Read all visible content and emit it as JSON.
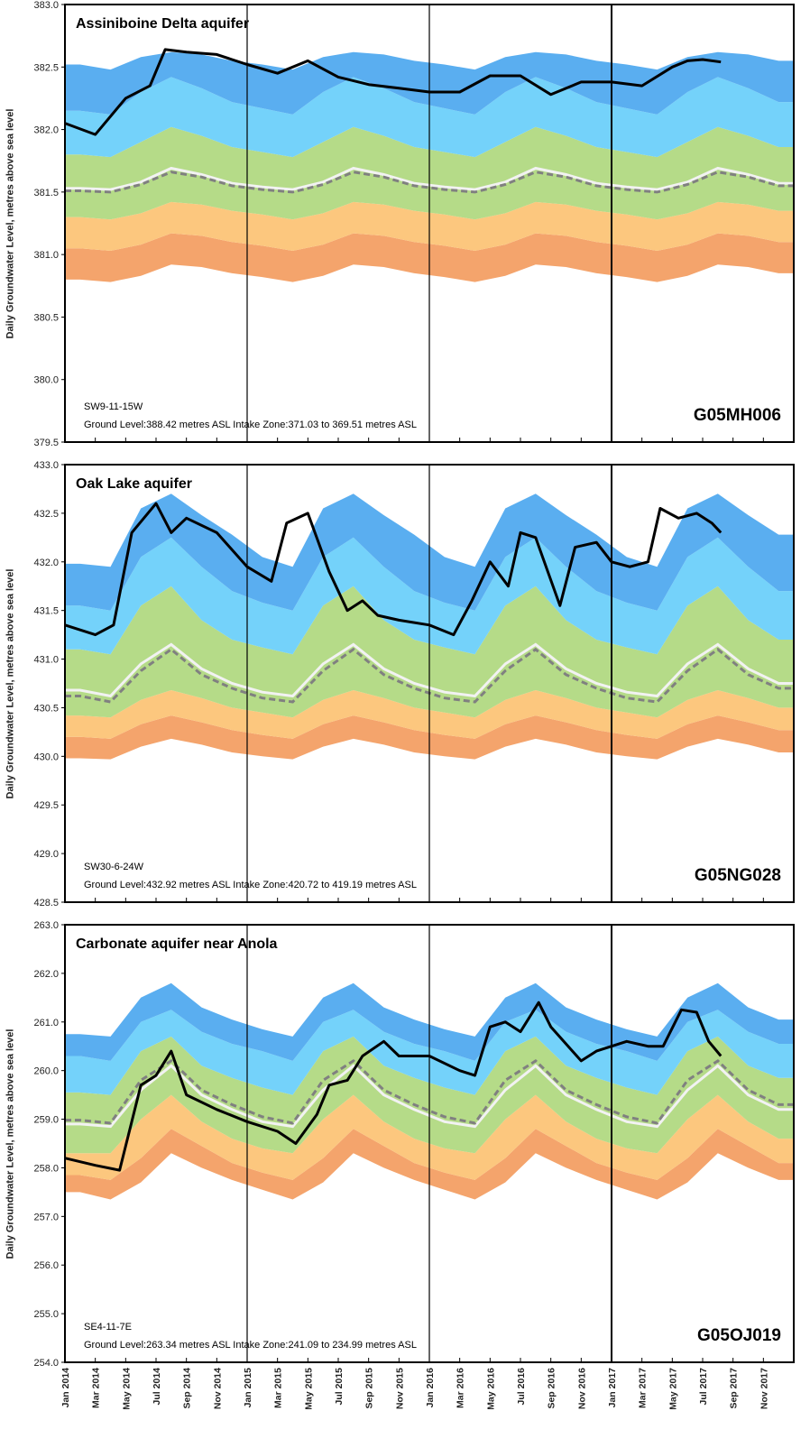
{
  "shared": {
    "ylabel": "Daily Groundwater Level, metres above sea level",
    "x_tick_labels": [
      "Jan 2014",
      "Mar 2014",
      "May 2014",
      "Jul 2014",
      "Sep 2014",
      "Nov 2014",
      "Jan 2015",
      "Mar 2015",
      "May 2015",
      "Jul 2015",
      "Sep 2015",
      "Nov 2015",
      "Jan 2016",
      "Mar 2016",
      "May 2016",
      "Jul 2016",
      "Sep 2016",
      "Nov 2016",
      "Jan 2017",
      "Mar 2017",
      "May 2017",
      "Jul 2017",
      "Sep 2017",
      "Nov 2017"
    ],
    "year_markers": [
      "Jan 2015",
      "Jan 2016",
      "Jan 2017"
    ],
    "colors": {
      "band_top": "#5aaef0",
      "band_upper": "#74d2fa",
      "band_mid": "#b5db88",
      "band_lower": "#fcc77e",
      "band_bottom": "#f4a46c",
      "median_line": "#f2f2f2",
      "mean_dash": "#808080",
      "level_line": "#000000",
      "marker_line": "#000000"
    }
  },
  "chart_data": [
    {
      "type": "area",
      "title": "Assiniboine Delta aquifer",
      "station": "G05MH006",
      "location": "SW9-11-15W",
      "details": "Ground Level:388.42 metres ASL  Intake Zone:371.03 to 369.51 metres ASL",
      "ylabel": "Daily Groundwater Level, metres above sea level",
      "ylim": [
        379.5,
        383.0
      ],
      "yticks": [
        "383.0",
        "382.5",
        "382.0",
        "381.5",
        "381.0",
        "380.5",
        "380.0",
        "379.5"
      ],
      "x": [
        "Jan 2014",
        "Mar 2014",
        "May 2014",
        "Jul 2014",
        "Sep 2014",
        "Nov 2014",
        "Jan 2015",
        "Mar 2015",
        "May 2015",
        "Jul 2015",
        "Sep 2015",
        "Nov 2015",
        "Jan 2016",
        "Mar 2016",
        "May 2016",
        "Jul 2016",
        "Sep 2016",
        "Nov 2016",
        "Jan 2017",
        "Mar 2017",
        "May 2017",
        "Jul 2017",
        "Sep 2017",
        "Nov 2017"
      ],
      "bands": {
        "min": [
          380.8,
          380.78,
          380.83,
          380.92,
          380.9,
          380.85,
          380.82,
          380.78,
          380.83,
          380.92,
          380.9,
          380.85,
          380.82,
          380.78,
          380.83,
          380.92,
          380.9,
          380.85,
          380.82,
          380.78,
          380.83,
          380.92,
          380.9,
          380.85
        ],
        "p10": [
          381.05,
          381.03,
          381.08,
          381.17,
          381.15,
          381.1,
          381.07,
          381.03,
          381.08,
          381.17,
          381.15,
          381.1,
          381.07,
          381.03,
          381.08,
          381.17,
          381.15,
          381.1,
          381.07,
          381.03,
          381.08,
          381.17,
          381.15,
          381.1
        ],
        "p25": [
          381.3,
          381.28,
          381.33,
          381.42,
          381.4,
          381.35,
          381.32,
          381.28,
          381.33,
          381.42,
          381.4,
          381.35,
          381.32,
          381.28,
          381.33,
          381.42,
          381.4,
          381.35,
          381.32,
          381.28,
          381.33,
          381.42,
          381.4,
          381.35
        ],
        "p75": [
          381.8,
          381.78,
          381.9,
          382.02,
          381.95,
          381.86,
          381.82,
          381.78,
          381.9,
          382.02,
          381.95,
          381.86,
          381.82,
          381.78,
          381.9,
          382.02,
          381.95,
          381.86,
          381.82,
          381.78,
          381.9,
          382.02,
          381.95,
          381.86
        ],
        "p90": [
          382.15,
          382.12,
          382.3,
          382.42,
          382.33,
          382.22,
          382.17,
          382.12,
          382.3,
          382.42,
          382.33,
          382.22,
          382.17,
          382.12,
          382.3,
          382.42,
          382.33,
          382.22,
          382.17,
          382.12,
          382.3,
          382.42,
          382.33,
          382.22
        ],
        "max": [
          382.52,
          382.48,
          382.58,
          382.62,
          382.6,
          382.55,
          382.52,
          382.48,
          382.58,
          382.62,
          382.6,
          382.55,
          382.52,
          382.48,
          382.58,
          382.62,
          382.6,
          382.55,
          382.52,
          382.48,
          382.58,
          382.62,
          382.6,
          382.55
        ],
        "median": [
          381.53,
          381.52,
          381.58,
          381.69,
          381.64,
          381.57,
          381.54,
          381.52,
          381.58,
          381.69,
          381.64,
          381.57,
          381.54,
          381.52,
          381.58,
          381.69,
          381.64,
          381.57,
          381.54,
          381.52,
          381.58,
          381.69,
          381.64,
          381.57
        ],
        "mean": [
          381.51,
          381.5,
          381.56,
          381.66,
          381.62,
          381.55,
          381.52,
          381.5,
          381.56,
          381.66,
          381.62,
          381.55,
          381.52,
          381.5,
          381.56,
          381.66,
          381.62,
          381.55,
          381.52,
          381.5,
          381.56,
          381.66,
          381.62,
          381.55
        ]
      },
      "level": {
        "x": [
          0,
          1,
          2,
          2.8,
          3.3,
          4,
          5,
          6,
          7,
          8,
          9,
          10,
          11,
          12,
          13,
          14,
          15,
          16,
          17,
          18,
          19,
          20,
          20.5,
          21,
          21.6
        ],
        "y": [
          382.05,
          381.96,
          382.25,
          382.35,
          382.64,
          382.62,
          382.6,
          382.52,
          382.45,
          382.55,
          382.42,
          382.36,
          382.33,
          382.3,
          382.3,
          382.43,
          382.43,
          382.28,
          382.38,
          382.38,
          382.35,
          382.5,
          382.55,
          382.56,
          382.54
        ]
      }
    },
    {
      "type": "area",
      "title": "Oak Lake aquifer",
      "station": "G05NG028",
      "location": "SW30-6-24W",
      "details": "Ground Level:432.92 metres ASL  Intake Zone:420.72 to 419.19 metres ASL",
      "ylabel": "Daily Groundwater Level, metres above sea level",
      "ylim": [
        428.5,
        433.0
      ],
      "yticks": [
        "433.0",
        "432.5",
        "432.0",
        "431.5",
        "431.0",
        "430.5",
        "430.0",
        "429.5",
        "429.0",
        "428.5"
      ],
      "x": [
        "Jan 2014",
        "Mar 2014",
        "May 2014",
        "Jul 2014",
        "Sep 2014",
        "Nov 2014",
        "Jan 2015",
        "Mar 2015",
        "May 2015",
        "Jul 2015",
        "Sep 2015",
        "Nov 2015",
        "Jan 2016",
        "Mar 2016",
        "May 2016",
        "Jul 2016",
        "Sep 2016",
        "Nov 2016",
        "Jan 2017",
        "Mar 2017",
        "May 2017",
        "Jul 2017",
        "Sep 2017",
        "Nov 2017"
      ],
      "bands": {
        "min": [
          429.98,
          429.97,
          430.1,
          430.18,
          430.12,
          430.04,
          430.0,
          429.97,
          430.1,
          430.18,
          430.12,
          430.04,
          430.0,
          429.97,
          430.1,
          430.18,
          430.12,
          430.04,
          430.0,
          429.97,
          430.1,
          430.18,
          430.12,
          430.04
        ],
        "p10": [
          430.2,
          430.18,
          430.33,
          430.42,
          430.35,
          430.27,
          430.22,
          430.18,
          430.33,
          430.42,
          430.35,
          430.27,
          430.22,
          430.18,
          430.33,
          430.42,
          430.35,
          430.27,
          430.22,
          430.18,
          430.33,
          430.42,
          430.35,
          430.27
        ],
        "p25": [
          430.42,
          430.4,
          430.58,
          430.68,
          430.6,
          430.5,
          430.45,
          430.4,
          430.58,
          430.68,
          430.6,
          430.5,
          430.45,
          430.4,
          430.58,
          430.68,
          430.6,
          430.5,
          430.45,
          430.4,
          430.58,
          430.68,
          430.6,
          430.5
        ],
        "p75": [
          431.1,
          431.05,
          431.55,
          431.75,
          431.4,
          431.2,
          431.12,
          431.05,
          431.55,
          431.75,
          431.4,
          431.2,
          431.12,
          431.05,
          431.55,
          431.75,
          431.4,
          431.2,
          431.12,
          431.05,
          431.55,
          431.75,
          431.4,
          431.2
        ],
        "p90": [
          431.55,
          431.5,
          432.05,
          432.25,
          431.95,
          431.7,
          431.58,
          431.5,
          432.05,
          432.25,
          431.95,
          431.7,
          431.58,
          431.5,
          432.05,
          432.25,
          431.95,
          431.7,
          431.58,
          431.5,
          432.05,
          432.25,
          431.95,
          431.7
        ],
        "max": [
          431.98,
          431.95,
          432.55,
          432.7,
          432.48,
          432.28,
          432.05,
          431.95,
          432.55,
          432.7,
          432.48,
          432.28,
          432.05,
          431.95,
          432.55,
          432.7,
          432.48,
          432.28,
          432.05,
          431.95,
          432.55,
          432.7,
          432.48,
          432.28
        ],
        "median": [
          430.68,
          430.62,
          430.95,
          431.15,
          430.9,
          430.75,
          430.66,
          430.62,
          430.95,
          431.15,
          430.9,
          430.75,
          430.66,
          430.62,
          430.95,
          431.15,
          430.9,
          430.75,
          430.66,
          430.62,
          430.95,
          431.15,
          430.9,
          430.75
        ],
        "mean": [
          430.62,
          430.56,
          430.88,
          431.1,
          430.84,
          430.7,
          430.6,
          430.56,
          430.88,
          431.1,
          430.84,
          430.7,
          430.6,
          430.56,
          430.88,
          431.1,
          430.84,
          430.7,
          430.6,
          430.56,
          430.88,
          431.1,
          430.84,
          430.7
        ]
      },
      "level": {
        "x": [
          0,
          1,
          1.6,
          2.2,
          3,
          3.5,
          4,
          5,
          6,
          6.8,
          7.3,
          8,
          8.7,
          9.3,
          9.8,
          10.3,
          11,
          12,
          12.8,
          13.4,
          14,
          14.6,
          15,
          15.5,
          16.3,
          16.8,
          17.5,
          18,
          18.6,
          19.2,
          19.6,
          20.2,
          20.8,
          21.3,
          21.6
        ],
        "y": [
          431.35,
          431.25,
          431.35,
          432.3,
          432.6,
          432.3,
          432.45,
          432.3,
          431.95,
          431.8,
          432.4,
          432.5,
          431.9,
          431.5,
          431.6,
          431.45,
          431.4,
          431.35,
          431.25,
          431.6,
          432.0,
          431.75,
          432.3,
          432.25,
          431.55,
          432.15,
          432.2,
          432.0,
          431.95,
          432.0,
          432.55,
          432.45,
          432.5,
          432.4,
          432.3
        ]
      }
    },
    {
      "type": "area",
      "title": "Carbonate aquifer near Anola",
      "station": "G05OJ019",
      "location": "SE4-11-7E",
      "details": "Ground Level:263.34 metres ASL  Intake Zone:241.09 to 234.99 metres ASL",
      "ylabel": "Daily Groundwater Level, metres above sea level",
      "ylim": [
        254.0,
        263.0
      ],
      "yticks": [
        "263.0",
        "262.0",
        "261.0",
        "260.0",
        "259.0",
        "258.0",
        "257.0",
        "256.0",
        "255.0",
        "254.0"
      ],
      "x": [
        "Jan 2014",
        "Mar 2014",
        "May 2014",
        "Jul 2014",
        "Sep 2014",
        "Nov 2014",
        "Jan 2015",
        "Mar 2015",
        "May 2015",
        "Jul 2015",
        "Sep 2015",
        "Nov 2015",
        "Jan 2016",
        "Mar 2016",
        "May 2016",
        "Jul 2016",
        "Sep 2016",
        "Nov 2016",
        "Jan 2017",
        "Mar 2017",
        "May 2017",
        "Jul 2017",
        "Sep 2017",
        "Nov 2017"
      ],
      "bands": {
        "min": [
          257.5,
          257.35,
          257.7,
          258.3,
          258.0,
          257.75,
          257.55,
          257.35,
          257.7,
          258.3,
          258.0,
          257.75,
          257.55,
          257.35,
          257.7,
          258.3,
          258.0,
          257.75,
          257.55,
          257.35,
          257.7,
          258.3,
          258.0,
          257.75
        ],
        "p10": [
          257.85,
          257.75,
          258.2,
          258.8,
          258.45,
          258.1,
          257.9,
          257.75,
          258.2,
          258.8,
          258.45,
          258.1,
          257.9,
          257.75,
          258.2,
          258.8,
          258.45,
          258.1,
          257.9,
          257.75,
          258.2,
          258.8,
          258.45,
          258.1
        ],
        "p25": [
          258.3,
          258.3,
          259.0,
          259.5,
          258.95,
          258.6,
          258.4,
          258.3,
          259.0,
          259.5,
          258.95,
          258.6,
          258.4,
          258.3,
          259.0,
          259.5,
          258.95,
          258.6,
          258.4,
          258.3,
          259.0,
          259.5,
          258.95,
          258.6
        ],
        "p75": [
          259.55,
          259.5,
          260.4,
          260.7,
          260.1,
          259.85,
          259.65,
          259.5,
          260.4,
          260.7,
          260.1,
          259.85,
          259.65,
          259.5,
          260.4,
          260.7,
          260.1,
          259.85,
          259.65,
          259.5,
          260.4,
          260.7,
          260.1,
          259.85
        ],
        "p90": [
          260.3,
          260.2,
          261.0,
          261.25,
          260.8,
          260.55,
          260.4,
          260.2,
          261.0,
          261.25,
          260.8,
          260.55,
          260.4,
          260.2,
          261.0,
          261.25,
          260.8,
          260.55,
          260.4,
          260.2,
          261.0,
          261.25,
          260.8,
          260.55
        ],
        "max": [
          260.75,
          260.7,
          261.5,
          261.8,
          261.3,
          261.05,
          260.85,
          260.7,
          261.5,
          261.8,
          261.3,
          261.05,
          260.85,
          260.7,
          261.5,
          261.8,
          261.3,
          261.05,
          260.85,
          260.7,
          261.5,
          261.8,
          261.3,
          261.05
        ],
        "median": [
          258.9,
          258.85,
          259.6,
          260.1,
          259.5,
          259.2,
          258.95,
          258.85,
          259.6,
          260.1,
          259.5,
          259.2,
          258.95,
          258.85,
          259.6,
          260.1,
          259.5,
          259.2,
          258.95,
          258.85,
          259.6,
          260.1,
          259.5,
          259.2
        ],
        "mean": [
          258.98,
          258.92,
          259.8,
          260.2,
          259.6,
          259.3,
          259.05,
          258.92,
          259.8,
          260.2,
          259.6,
          259.3,
          259.05,
          258.92,
          259.8,
          260.2,
          259.6,
          259.3,
          259.05,
          258.92,
          259.8,
          260.2,
          259.6,
          259.3
        ]
      },
      "level": {
        "x": [
          0,
          1,
          1.8,
          2.5,
          3,
          3.5,
          4,
          5,
          6,
          7,
          7.6,
          8.3,
          8.7,
          9.3,
          9.8,
          10.5,
          11,
          12,
          13,
          13.5,
          14,
          14.5,
          15,
          15.6,
          16,
          17,
          17.5,
          18,
          18.5,
          19.2,
          19.7,
          20.3,
          20.8,
          21.2,
          21.6
        ],
        "y": [
          258.2,
          258.05,
          257.95,
          259.7,
          259.9,
          260.4,
          259.5,
          259.2,
          258.95,
          258.75,
          258.5,
          259.1,
          259.7,
          259.8,
          260.3,
          260.6,
          260.3,
          260.3,
          260.0,
          259.9,
          260.9,
          261.0,
          260.8,
          261.4,
          260.9,
          260.2,
          260.4,
          260.5,
          260.6,
          260.5,
          260.5,
          261.25,
          261.2,
          260.6,
          260.3
        ]
      }
    }
  ]
}
